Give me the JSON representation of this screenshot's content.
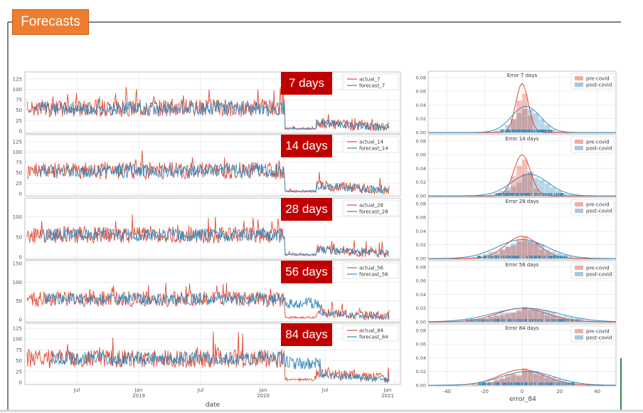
{
  "title": "Forecasts",
  "left_xlabel": "date",
  "right_xlabel": "error_84",
  "left_time_ticks": [
    "Jul",
    "Jan\n2019",
    "Jul",
    "Jan\n2020",
    "Jul",
    "Jan\n2021"
  ],
  "chart_data": [
    {
      "type": "line",
      "badge": "7 days",
      "series": [
        {
          "name": "actual_7"
        },
        {
          "name": "forecast_7"
        }
      ],
      "ylim": [
        0,
        135
      ],
      "yticks": [
        0,
        25,
        50,
        75,
        100,
        125
      ]
    },
    {
      "type": "line",
      "badge": "14 days",
      "series": [
        {
          "name": "actual_14"
        },
        {
          "name": "forecast_14"
        }
      ],
      "ylim": [
        0,
        135
      ],
      "yticks": [
        0,
        25,
        50,
        75,
        100,
        125
      ]
    },
    {
      "type": "line",
      "badge": "28 days",
      "series": [
        {
          "name": "actual_28"
        },
        {
          "name": "forecast_28"
        }
      ],
      "ylim": [
        0,
        140
      ],
      "yticks": [
        0,
        50,
        100
      ]
    },
    {
      "type": "line",
      "badge": "56 days",
      "series": [
        {
          "name": "actual_56"
        },
        {
          "name": "forecast_56"
        }
      ],
      "ylim": [
        0,
        150
      ],
      "yticks": [
        0,
        50,
        100,
        150
      ]
    },
    {
      "type": "line",
      "badge": "84 days",
      "series": [
        {
          "name": "actual_84"
        },
        {
          "name": "forecast_84"
        }
      ],
      "ylim": [
        0,
        130
      ],
      "yticks": [
        0,
        25,
        50,
        75,
        100,
        125
      ]
    },
    {
      "type": "histogram",
      "title": "Error 7 days",
      "series": [
        {
          "name": "pre-covid"
        },
        {
          "name": "post-covid"
        }
      ],
      "ylim": [
        0,
        0.085
      ],
      "yticks": [
        0.0,
        0.02,
        0.04,
        0.06,
        0.08
      ]
    },
    {
      "type": "histogram",
      "title": "Error 14 days",
      "series": [
        {
          "name": "pre-covid"
        },
        {
          "name": "post-covid"
        }
      ],
      "ylim": [
        0,
        0.085
      ],
      "yticks": [
        0.0,
        0.02,
        0.04,
        0.06,
        0.08
      ]
    },
    {
      "type": "histogram",
      "title": "Error 28 days",
      "series": [
        {
          "name": "pre-covid"
        },
        {
          "name": "post-covid"
        }
      ],
      "ylim": [
        0,
        0.085
      ],
      "yticks": [
        0.0,
        0.02,
        0.04,
        0.06,
        0.08
      ]
    },
    {
      "type": "histogram",
      "title": "Error 56 days",
      "series": [
        {
          "name": "pre-covid"
        },
        {
          "name": "post-covid"
        }
      ],
      "ylim": [
        0,
        0.085
      ],
      "yticks": [
        0.0,
        0.02,
        0.04,
        0.06,
        0.08
      ]
    },
    {
      "type": "histogram",
      "title": "Error 84 days",
      "series": [
        {
          "name": "pre-covid"
        },
        {
          "name": "post-covid"
        }
      ],
      "ylim": [
        0,
        0.085
      ],
      "yticks": [
        0.0,
        0.02,
        0.04,
        0.06,
        0.08
      ],
      "xticks": [
        -40,
        -20,
        0,
        20,
        40
      ],
      "xlim": [
        -50,
        50
      ]
    }
  ],
  "colors": {
    "actual": "#e24a33",
    "forecast": "#348abd",
    "badge": "#c00000",
    "title_bg": "#ed7d31"
  }
}
